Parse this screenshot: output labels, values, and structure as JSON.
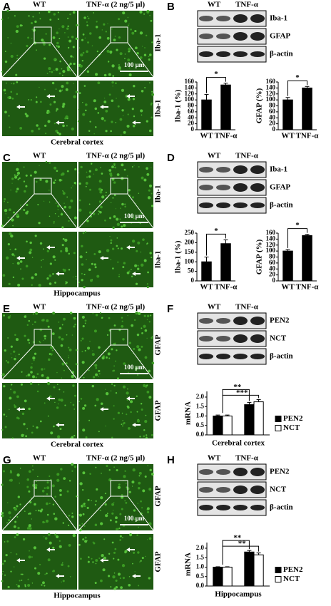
{
  "panels": [
    {
      "label": "A",
      "columns": [
        "WT",
        "TNF-α (2 ng/5 μl)"
      ],
      "markers": [
        "Iba-1",
        "Iba-1"
      ],
      "scale_bar": "100 μm",
      "region": "Cerebral cortex"
    },
    {
      "label": "B",
      "columns": [
        "WT",
        "TNF-α"
      ],
      "bands": [
        "Iba-1",
        "GFAP",
        "β-actin"
      ],
      "charts": [
        {
          "type": "bar",
          "ylabel": "Iba-1 (%)",
          "categories": [
            "WT",
            "TNF-α"
          ],
          "values": [
            100,
            150
          ],
          "errors": [
            18,
            6
          ],
          "color": "#000000",
          "ylim": [
            0,
            160
          ],
          "yticks": [
            0,
            20,
            40,
            60,
            80,
            100,
            120,
            140,
            160
          ],
          "significance": "*"
        },
        {
          "type": "bar",
          "ylabel": "GFAP (%)",
          "categories": [
            "WT",
            "TNF-α"
          ],
          "values": [
            100,
            140
          ],
          "errors": [
            8,
            5
          ],
          "color": "#000000",
          "ylim": [
            0,
            160
          ],
          "yticks": [
            0,
            20,
            40,
            60,
            80,
            100,
            120,
            140,
            160
          ],
          "significance": "*"
        }
      ]
    },
    {
      "label": "C",
      "columns": [
        "WT",
        "TNF-α (2 ng/5 μl)"
      ],
      "markers": [
        "Iba-1",
        "Iba-1"
      ],
      "scale_bar": "100 μm",
      "region": "Hippocampus"
    },
    {
      "label": "D",
      "columns": [
        "WT",
        "TNF-α"
      ],
      "bands": [
        "Iba-1",
        "GFAP",
        "β-actin"
      ],
      "charts": [
        {
          "type": "bar",
          "ylabel": "Iba-1 (%)",
          "categories": [
            "WT",
            "TNF-α"
          ],
          "values": [
            100,
            195
          ],
          "errors": [
            25,
            20
          ],
          "color": "#000000",
          "ylim": [
            0,
            250
          ],
          "yticks": [
            0,
            50,
            100,
            150,
            200,
            250
          ],
          "significance": "*"
        },
        {
          "type": "bar",
          "ylabel": "GFAP (%)",
          "categories": [
            "WT",
            "TNF-α"
          ],
          "values": [
            100,
            152
          ],
          "errors": [
            5,
            4
          ],
          "color": "#000000",
          "ylim": [
            0,
            160
          ],
          "yticks": [
            0,
            20,
            40,
            60,
            80,
            100,
            120,
            140,
            160
          ],
          "significance": "*"
        }
      ]
    },
    {
      "label": "E",
      "columns": [
        "WT",
        "TNF-α (2 ng/5 μl)"
      ],
      "markers": [
        "GFAP",
        "GFAP"
      ],
      "scale_bar": "100 μm",
      "region": "Cerebral cortex"
    },
    {
      "label": "F",
      "columns": [
        "WT",
        "TNF-α"
      ],
      "bands": [
        "PEN2",
        "NCT",
        "β-actin"
      ],
      "charts": [
        {
          "type": "grouped_bar",
          "ylabel": "mRNA",
          "xlabel": "Cerebral cortex",
          "categories": [
            null,
            null
          ],
          "series": [
            {
              "name": "PEN2",
              "color": "#000000",
              "values": [
                1.0,
                1.6
              ],
              "errors": [
                0.05,
                0.12
              ]
            },
            {
              "name": "NCT",
              "color": "#ffffff",
              "values": [
                1.0,
                1.75
              ],
              "errors": [
                0.05,
                0.12
              ]
            }
          ],
          "ylim": [
            0,
            2.3
          ],
          "yticks": [
            {
              "value": 0,
              "label": "0.0"
            },
            {
              "value": 0.5,
              "label": "0.5"
            },
            {
              "value": 1,
              "label": "1.0"
            },
            {
              "value": 1.5,
              "label": "1.5"
            },
            {
              "value": 2,
              "label": "2.0"
            }
          ],
          "significance": [
            "**",
            "***"
          ]
        }
      ]
    },
    {
      "label": "G",
      "columns": [
        "WT",
        "TNF-α (2 ng/5 μl)"
      ],
      "markers": [
        "GFAP",
        "GFAP"
      ],
      "scale_bar": "100 μm",
      "region": "Hippocampus"
    },
    {
      "label": "H",
      "columns": [
        "WT",
        "TNF-α"
      ],
      "bands": [
        "PEN2",
        "NCT",
        "β-actin"
      ],
      "charts": [
        {
          "type": "grouped_bar",
          "ylabel": "mRNA",
          "xlabel": "Hippocampus",
          "categories": [
            null,
            null
          ],
          "series": [
            {
              "name": "PEN2",
              "color": "#000000",
              "values": [
                1.0,
                1.8
              ],
              "errors": [
                0.02,
                0.08
              ]
            },
            {
              "name": "NCT",
              "color": "#ffffff",
              "values": [
                1.0,
                1.65
              ],
              "errors": [
                0.02,
                0.1
              ]
            }
          ],
          "ylim": [
            0,
            2.3
          ],
          "yticks": [
            {
              "value": 0,
              "label": "0.0"
            },
            {
              "value": 0.5,
              "label": "0.5"
            },
            {
              "value": 1,
              "label": "1.0"
            },
            {
              "value": 1.5,
              "label": "1.5"
            },
            {
              "value": 2,
              "label": "2.0"
            }
          ],
          "significance": [
            "**",
            "**"
          ]
        }
      ]
    }
  ]
}
